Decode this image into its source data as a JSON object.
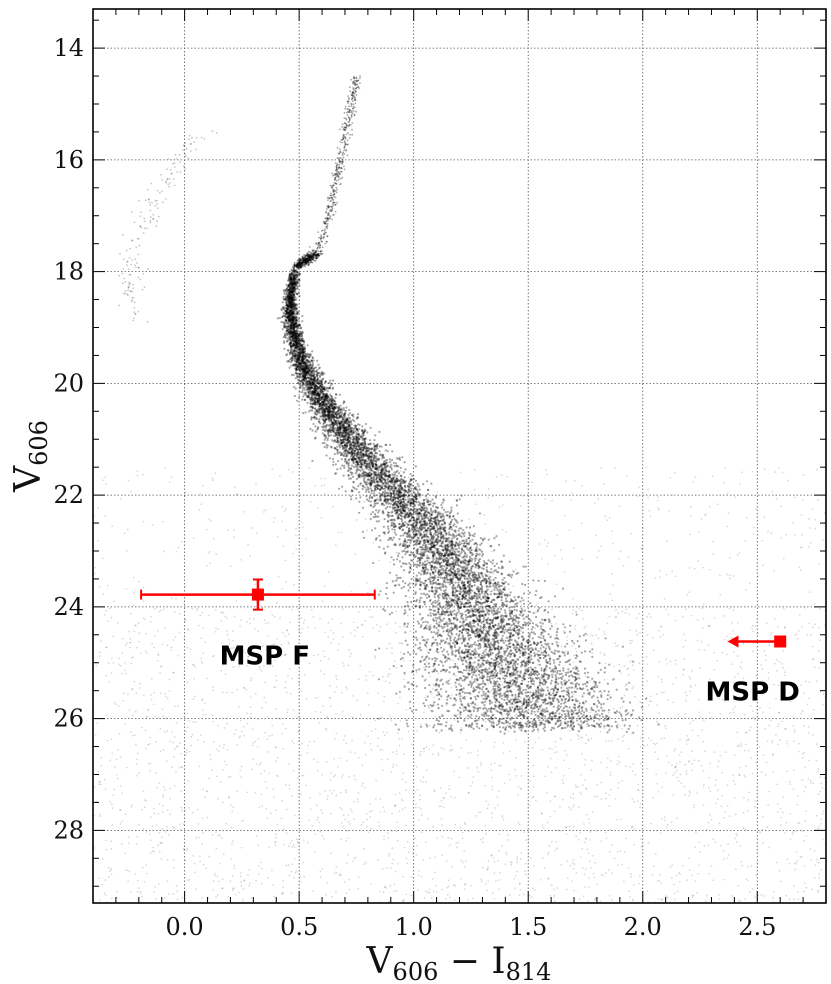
{
  "chart_data": {
    "type": "scatter",
    "title": "",
    "xlabel": {
      "main": "V",
      "sub1": "606",
      "op": " − I",
      "sub2": "814"
    },
    "ylabel": {
      "main": "V",
      "sub": "606"
    },
    "xlim": [
      -0.4,
      2.8
    ],
    "ylim": [
      29.3,
      13.3
    ],
    "y_inverted": true,
    "grid": true,
    "grid_style": "dotted",
    "xticks": [
      0.0,
      0.5,
      1.0,
      1.5,
      2.0,
      2.5
    ],
    "xtick_labels": [
      "0.0",
      "0.5",
      "1.0",
      "1.5",
      "2.0",
      "2.5"
    ],
    "yticks": [
      14,
      16,
      18,
      20,
      22,
      24,
      26,
      28
    ],
    "ytick_labels": [
      "14",
      "16",
      "18",
      "20",
      "22",
      "24",
      "26",
      "28"
    ],
    "background_points": {
      "description": "cluster color-magnitude diagram (dense black point cloud)",
      "color": "#000000",
      "main_sequence_ridge": [
        {
          "x": 0.48,
          "y": 18.0
        },
        {
          "x": 0.46,
          "y": 18.5
        },
        {
          "x": 0.47,
          "y": 19.0
        },
        {
          "x": 0.51,
          "y": 19.6
        },
        {
          "x": 0.58,
          "y": 20.2
        },
        {
          "x": 0.7,
          "y": 20.9
        },
        {
          "x": 0.84,
          "y": 21.6
        },
        {
          "x": 0.99,
          "y": 22.3
        },
        {
          "x": 1.12,
          "y": 23.0
        },
        {
          "x": 1.22,
          "y": 23.7
        },
        {
          "x": 1.3,
          "y": 24.3
        },
        {
          "x": 1.38,
          "y": 24.9
        },
        {
          "x": 1.46,
          "y": 25.5
        },
        {
          "x": 1.53,
          "y": 26.0
        }
      ],
      "turnoff_hook": [
        {
          "x": 0.48,
          "y": 18.0
        },
        {
          "x": 0.52,
          "y": 17.8
        },
        {
          "x": 0.58,
          "y": 17.7
        }
      ],
      "red_giant_branch": [
        {
          "x": 0.58,
          "y": 17.7
        },
        {
          "x": 0.63,
          "y": 17.0
        },
        {
          "x": 0.67,
          "y": 16.2
        },
        {
          "x": 0.71,
          "y": 15.4
        },
        {
          "x": 0.75,
          "y": 14.5
        }
      ],
      "horizontal_branch": [
        {
          "x": 0.09,
          "y": 15.5
        },
        {
          "x": 0.0,
          "y": 15.9
        },
        {
          "x": -0.12,
          "y": 16.6
        },
        {
          "x": -0.2,
          "y": 17.4
        },
        {
          "x": -0.24,
          "y": 18.2
        },
        {
          "x": -0.23,
          "y": 18.9
        }
      ]
    },
    "markers": [
      {
        "label": "MSP F",
        "x": 0.32,
        "y": 23.78,
        "xerr": [
          0.51,
          0.51
        ],
        "yerr": [
          0.27,
          0.27
        ],
        "color": "#ff0000",
        "label_x": 0.35,
        "label_y": 24.85
      },
      {
        "label": "MSP D",
        "x": 2.6,
        "y": 24.62,
        "upper_limit_arrow": "left",
        "arrow_to_x": 2.37,
        "color": "#ff0000",
        "label_x": 2.48,
        "label_y": 25.5
      }
    ]
  }
}
